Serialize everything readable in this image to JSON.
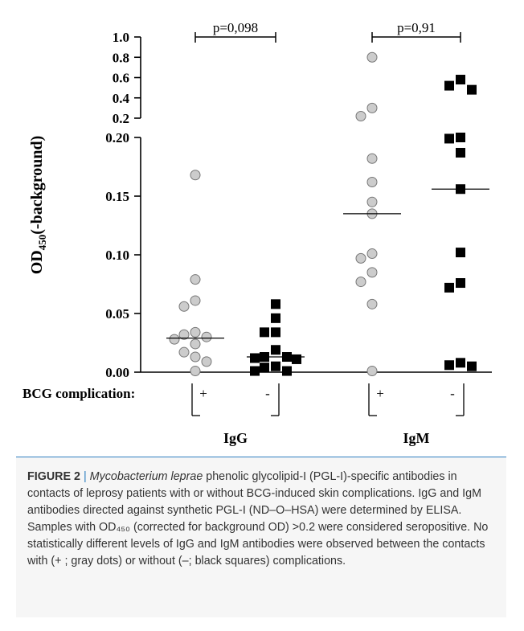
{
  "chart_data": {
    "type": "scatter",
    "ylabel_main": "OD",
    "ylabel_sub": "450",
    "ylabel_rest": "(-background)",
    "y_ticks_lower": [
      "0.00",
      "0.05",
      "0.10",
      "0.15",
      "0.20"
    ],
    "y_ticks_upper": [
      "0.2",
      "0.4",
      "0.6",
      "0.8",
      "1.0"
    ],
    "y_axis_break_at": 0.2,
    "ylim_lower": [
      0,
      0.2
    ],
    "ylim_upper": [
      0.2,
      1.0
    ],
    "groups": [
      {
        "name": "IgG",
        "p_value": "p=0,098",
        "series": [
          {
            "sign": "+",
            "marker": "circle",
            "color": "#cccccc",
            "median": 0.029,
            "values": [
              0.168,
              0.079,
              0.061,
              0.056,
              0.034,
              0.032,
              0.03,
              0.028,
              0.024,
              0.017,
              0.013,
              0.009,
              0.001
            ]
          },
          {
            "sign": "-",
            "marker": "square",
            "color": "#000000",
            "median": 0.013,
            "values": [
              0.058,
              0.046,
              0.034,
              0.034,
              0.019,
              0.013,
              0.013,
              0.012,
              0.011,
              0.005,
              0.004,
              0.001,
              0.001
            ]
          }
        ]
      },
      {
        "name": "IgM",
        "p_value": "p=0,91",
        "series": [
          {
            "sign": "+",
            "marker": "circle",
            "color": "#cccccc",
            "median": 0.135,
            "values": [
              0.8,
              0.3,
              0.22,
              0.182,
              0.162,
              0.145,
              0.135,
              0.101,
              0.097,
              0.085,
              0.077,
              0.058,
              0.001
            ]
          },
          {
            "sign": "-",
            "marker": "square",
            "color": "#000000",
            "median": 0.156,
            "values": [
              0.58,
              0.52,
              0.48,
              0.2,
              0.199,
              0.187,
              0.156,
              0.102,
              0.076,
              0.072,
              0.008,
              0.006,
              0.005
            ]
          }
        ]
      }
    ],
    "row_label": "BCG complication:"
  },
  "caption": {
    "label": "FIGURE 2",
    "separator": "|",
    "species": "Mycobacterium leprae",
    "text": " phenolic glycolipid-I (PGL-I)-specific antibodies in contacts of leprosy patients with or without BCG-induced skin complications. IgG and IgM antibodies directed against synthetic PGL-I (ND–O–HSA) were determined by ELISA. Samples with OD₄₅₀ (corrected for background OD) >0.2 were considered seropositive. No statistically different levels of IgG and IgM antibodies were observed between the contacts with (+ ; gray dots) or without (–; black squares) complications."
  }
}
